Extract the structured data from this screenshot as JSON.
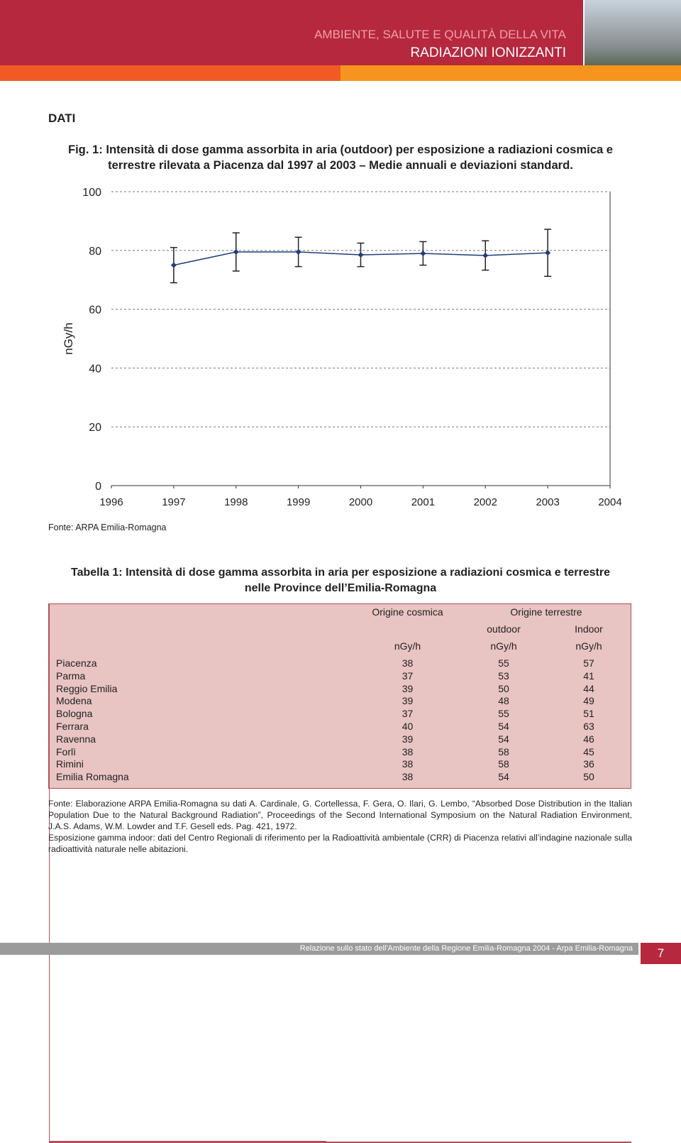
{
  "header": {
    "line1": "AMBIENTE, SALUTE E QUALITÀ DELLA VITA",
    "line2": "RADIAZIONI IONIZZANTI"
  },
  "section": "DATI",
  "chart_data": {
    "type": "line",
    "title": "Fig. 1: Intensità di dose gamma assorbita in aria (outdoor) per esposizione a radiazioni cosmica e terrestre rilevata a Piacenza dal 1997 al 2003 – Medie annuali e deviazioni standard.",
    "y_label": "nGy/h",
    "xlim": [
      1996,
      2004
    ],
    "xticks": [
      1996,
      1997,
      1998,
      1999,
      2000,
      2001,
      2002,
      2003,
      2004
    ],
    "ylim": [
      0,
      100
    ],
    "yticks": [
      0,
      20,
      40,
      60,
      80,
      100
    ],
    "grid": true,
    "series": [
      {
        "color": "#1f3d7a",
        "x": [
          1997,
          1998,
          1999,
          2000,
          2001,
          2002,
          2003
        ],
        "values": [
          75,
          79.5,
          79.5,
          78.5,
          79,
          78.3,
          79.2
        ],
        "errors": [
          6,
          6.5,
          5,
          4,
          4,
          5,
          8
        ]
      }
    ],
    "source": "Fonte: ARPA Emilia-Romagna"
  },
  "table": {
    "title": "Tabella 1: Intensità di dose gamma assorbita in aria per esposizione a radiazioni cosmica e terrestre nelle Province dell’Emilia-Romagna",
    "group_headers": [
      "Origine cosmica",
      "Origine terrestre"
    ],
    "sub_headers": [
      "outdoor",
      "Indoor"
    ],
    "units": [
      "nGy/h",
      "nGy/h",
      "nGy/h"
    ],
    "rows": [
      [
        "Piacenza",
        "38",
        "55",
        "57"
      ],
      [
        "Parma",
        "37",
        "53",
        "41"
      ],
      [
        "Reggio Emilia",
        "39",
        "50",
        "44"
      ],
      [
        "Modena",
        "39",
        "48",
        "49"
      ],
      [
        "Bologna",
        "37",
        "55",
        "51"
      ],
      [
        "Ferrara",
        "40",
        "54",
        "63"
      ],
      [
        "Ravenna",
        "39",
        "54",
        "46"
      ],
      [
        "Forlì",
        "38",
        "58",
        "45"
      ],
      [
        "Rimini",
        "38",
        "58",
        "36"
      ],
      [
        "Emilia Romagna",
        "38",
        "54",
        "50"
      ]
    ]
  },
  "notes": [
    "Fonte: Elaborazione ARPA Emilia-Romagna su dati A. Cardinale, G. Cortellessa, F. Gera, O. Ilari, G. Lembo, “Absorbed Dose Distribution in the Italian Population Due to the Natural Background Radiation”, Proceedings of the Second International Symposium on the Natural Radiation Environment, J.A.S. Adams, W.M. Lowder and T.F. Gesell eds. Pag. 421, 1972.",
    "Esposizione gamma indoor: dati del Centro Regionali di riferimento per la Radioattività ambientale (CRR) di Piacenza relativi all’indagine nazionale sulla radioattività naturale nelle abitazioni."
  ],
  "footer": {
    "text": "Relazione sullo stato dell'Ambiente della Regione Emilia-Romagna 2004 - Arpa Emilia-Romagna",
    "page": "7"
  }
}
